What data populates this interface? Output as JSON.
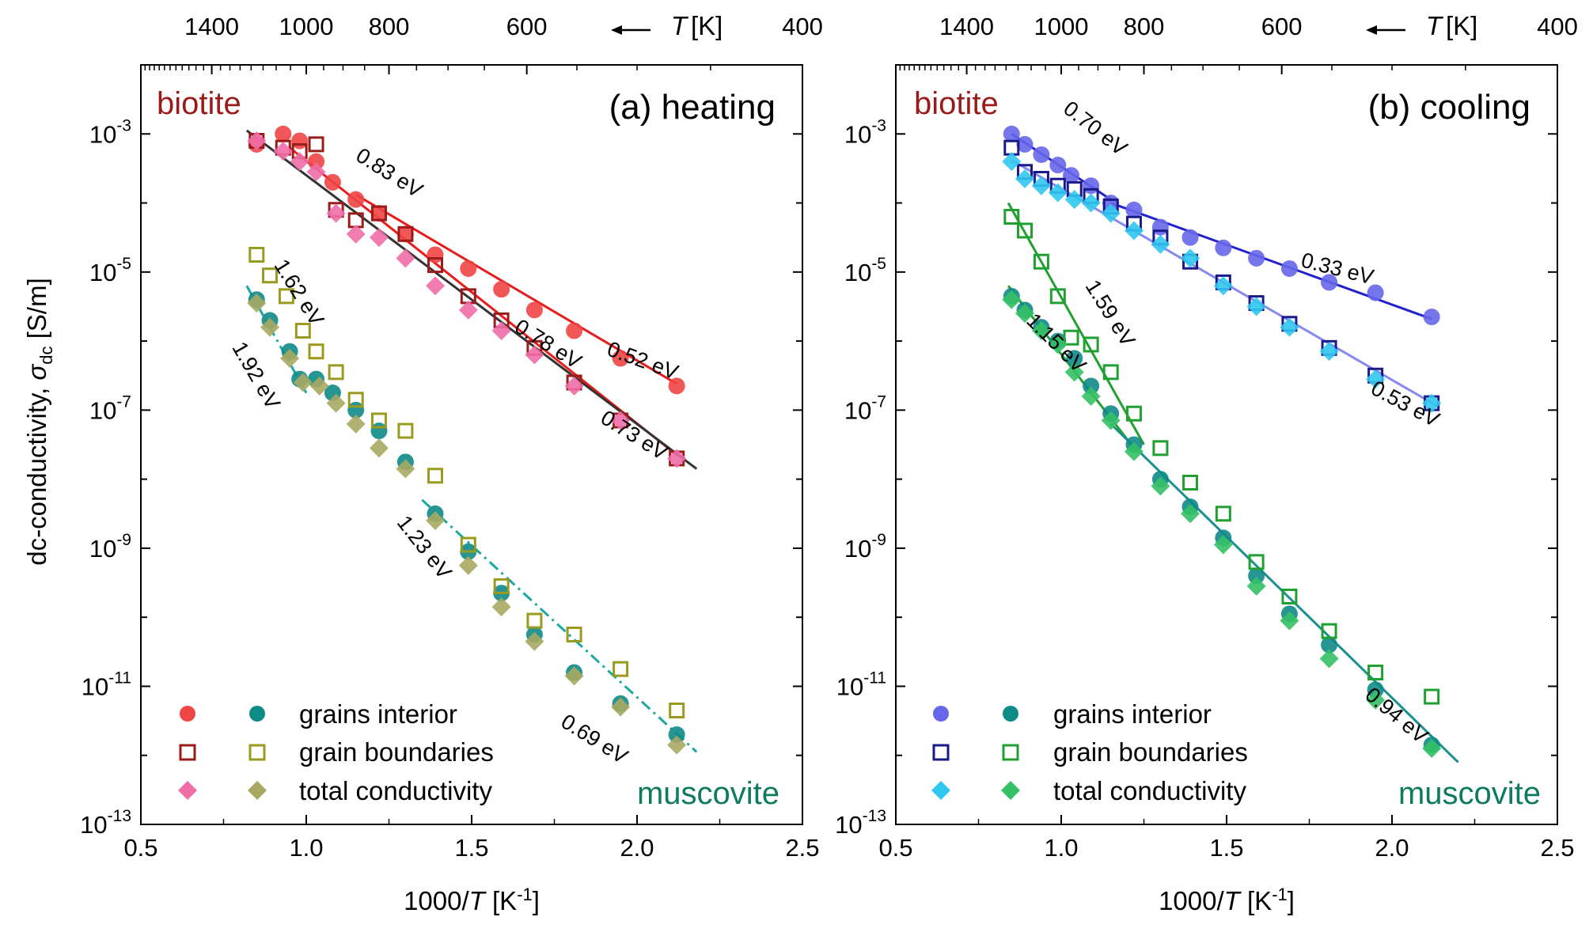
{
  "chart_data": [
    {
      "type": "scatter",
      "title": "(a) heating",
      "xlabel": "1000/T [K⁻¹]",
      "ylabel": "dc-conductivity, σdc [S/m]",
      "top_xlabel": "← T [K]",
      "xlim": [
        0.5,
        2.5
      ],
      "ylim_log10": [
        -13,
        -2
      ],
      "xticks": [
        "0.5",
        "1.0",
        "1.5",
        "2.0",
        "2.5"
      ],
      "yticks": [
        {
          "exp": -13,
          "label": "10",
          "sup": "-13"
        },
        {
          "exp": -11,
          "label": "10",
          "sup": "-11"
        },
        {
          "exp": -9,
          "label": "10",
          "sup": "-9"
        },
        {
          "exp": -7,
          "label": "10",
          "sup": "-7"
        },
        {
          "exp": -5,
          "label": "10",
          "sup": "-5"
        },
        {
          "exp": -3,
          "label": "10",
          "sup": "-3"
        }
      ],
      "top_ticks": [
        "1400",
        "1000",
        "800",
        "600",
        "400"
      ],
      "material_labels": {
        "biotite": "biotite",
        "muscovite": "muscovite"
      },
      "legend": {
        "grains": "grains interior",
        "boundaries": "grain boundaries",
        "total": "total conductivity"
      },
      "series": [
        {
          "name": "biotite grains interior",
          "marker": "circle",
          "color": "#f04545",
          "x": [
            0.85,
            0.93,
            0.98,
            1.03,
            1.08,
            1.15,
            1.22,
            1.3,
            1.39,
            1.49,
            1.59,
            1.69,
            1.81,
            1.95,
            2.12
          ],
          "y": [
            -3.15,
            -3.0,
            -3.1,
            -3.4,
            -3.7,
            -3.95,
            -4.15,
            -4.45,
            -4.75,
            -4.95,
            -5.25,
            -5.55,
            -5.85,
            -6.25,
            -6.65
          ]
        },
        {
          "name": "biotite grain boundaries",
          "marker": "square-open",
          "color": "#9b1b1b",
          "x": [
            0.85,
            0.93,
            0.98,
            1.03,
            1.09,
            1.15,
            1.22,
            1.3,
            1.39,
            1.49,
            1.59,
            1.69,
            1.81,
            1.95,
            2.12
          ],
          "y": [
            -3.1,
            -3.2,
            -3.25,
            -3.15,
            -4.1,
            -4.25,
            -4.15,
            -4.45,
            -4.9,
            -5.35,
            -5.7,
            -6.1,
            -6.6,
            -7.15,
            -7.7
          ]
        },
        {
          "name": "biotite total conductivity",
          "marker": "diamond",
          "color": "#f06ea8",
          "x": [
            0.85,
            0.93,
            0.98,
            1.03,
            1.09,
            1.15,
            1.22,
            1.3,
            1.39,
            1.49,
            1.59,
            1.69,
            1.81,
            1.95,
            2.12
          ],
          "y": [
            -3.1,
            -3.25,
            -3.4,
            -3.55,
            -4.15,
            -4.45,
            -4.5,
            -4.8,
            -5.2,
            -5.55,
            -5.85,
            -6.2,
            -6.65,
            -7.15,
            -7.7
          ]
        },
        {
          "name": "muscovite grains interior",
          "marker": "circle",
          "color": "#0e8a87",
          "x": [
            0.85,
            0.89,
            0.95,
            0.98,
            1.03,
            1.08,
            1.15,
            1.22,
            1.3,
            1.39,
            1.49,
            1.59,
            1.69,
            1.81,
            1.95,
            2.12
          ],
          "y": [
            -5.4,
            -5.7,
            -6.15,
            -6.55,
            -6.55,
            -6.75,
            -7.0,
            -7.3,
            -7.75,
            -8.5,
            -9.05,
            -9.65,
            -10.25,
            -10.8,
            -11.25,
            -11.7
          ]
        },
        {
          "name": "muscovite grain boundaries",
          "marker": "square-open",
          "color": "#9a9a1e",
          "x": [
            0.85,
            0.89,
            0.94,
            0.99,
            1.03,
            1.09,
            1.15,
            1.22,
            1.3,
            1.39,
            1.49,
            1.59,
            1.69,
            1.81,
            1.95,
            2.12
          ],
          "y": [
            -4.75,
            -5.05,
            -5.35,
            -5.85,
            -6.15,
            -6.45,
            -6.85,
            -7.15,
            -7.3,
            -7.95,
            -8.95,
            -9.55,
            -10.05,
            -10.25,
            -10.75,
            -11.35
          ]
        },
        {
          "name": "muscovite total conductivity",
          "marker": "diamond",
          "color": "#a8a863",
          "x": [
            0.85,
            0.89,
            0.95,
            0.99,
            1.04,
            1.09,
            1.15,
            1.22,
            1.3,
            1.39,
            1.49,
            1.59,
            1.69,
            1.81,
            1.95,
            2.12
          ],
          "y": [
            -5.45,
            -5.8,
            -6.25,
            -6.6,
            -6.65,
            -6.9,
            -7.2,
            -7.55,
            -7.85,
            -8.6,
            -9.25,
            -9.85,
            -10.35,
            -10.85,
            -11.3,
            -11.85
          ]
        }
      ],
      "fits": [
        {
          "label": "0.52 eV",
          "color": "#e81c1c",
          "style": "solid",
          "x": [
            1.15,
            2.12
          ],
          "y": [
            -3.88,
            -6.62
          ]
        },
        {
          "label": "0.78 eV",
          "color": "#e81c1c",
          "style": "solid",
          "x": [
            0.95,
            2.12
          ],
          "y": [
            -3.2,
            -7.65
          ]
        },
        {
          "label": "0.73 eV",
          "color": "#333333",
          "style": "solid",
          "x": [
            0.82,
            2.18
          ],
          "y": [
            -2.95,
            -7.85
          ]
        },
        {
          "label": "1.92 eV",
          "color": "#1aa8a0",
          "style": "dashdot",
          "x": [
            0.82,
            1.0
          ],
          "y": [
            -5.2,
            -6.75
          ]
        },
        {
          "label": "0.69 eV",
          "color": "#1aa8a0",
          "style": "dashdot",
          "x": [
            1.35,
            2.18
          ],
          "y": [
            -8.3,
            -11.95
          ]
        }
      ],
      "slope_labels": [
        {
          "text": "0.83 eV",
          "x": 1.24,
          "y": -3.65,
          "rot": 32
        },
        {
          "text": "0.52 eV",
          "x": 2.01,
          "y": -6.38,
          "rot": 20
        },
        {
          "text": "0.78 eV",
          "x": 1.72,
          "y": -6.13,
          "rot": 32
        },
        {
          "text": "0.73 eV",
          "x": 1.98,
          "y": -7.45,
          "rot": 32
        },
        {
          "text": "1.62 eV",
          "x": 0.96,
          "y": -5.35,
          "rot": 58
        },
        {
          "text": "1.92 eV",
          "x": 0.83,
          "y": -6.55,
          "rot": 60
        },
        {
          "text": "1.23 eV",
          "x": 1.34,
          "y": -9.05,
          "rot": 52
        },
        {
          "text": "0.69 eV",
          "x": 1.86,
          "y": -11.85,
          "rot": 32
        }
      ]
    },
    {
      "type": "scatter",
      "title": "(b) cooling",
      "xlabel": "1000/T [K⁻¹]",
      "ylabel": "",
      "top_xlabel": "← T [K]",
      "xlim": [
        0.5,
        2.5
      ],
      "ylim_log10": [
        -13,
        -2
      ],
      "xticks": [
        "0.5",
        "1.0",
        "1.5",
        "2.0",
        "2.5"
      ],
      "yticks": [
        {
          "exp": -13,
          "label": "10",
          "sup": "-13"
        },
        {
          "exp": -11,
          "label": "10",
          "sup": "-11"
        },
        {
          "exp": -9,
          "label": "10",
          "sup": "-9"
        },
        {
          "exp": -7,
          "label": "10",
          "sup": "-7"
        },
        {
          "exp": -5,
          "label": "10",
          "sup": "-5"
        },
        {
          "exp": -3,
          "label": "10",
          "sup": "-3"
        }
      ],
      "top_ticks": [
        "1400",
        "1000",
        "800",
        "600",
        "400"
      ],
      "material_labels": {
        "biotite": "biotite",
        "muscovite": "muscovite"
      },
      "legend": {
        "grains": "grains interior",
        "boundaries": "grain boundaries",
        "total": "total conductivity"
      },
      "series": [
        {
          "name": "biotite grains interior",
          "marker": "circle",
          "color": "#6666ea",
          "x": [
            0.85,
            0.89,
            0.94,
            0.99,
            1.03,
            1.09,
            1.15,
            1.22,
            1.3,
            1.39,
            1.49,
            1.59,
            1.69,
            1.81,
            1.95,
            2.12
          ],
          "y": [
            -3.0,
            -3.15,
            -3.3,
            -3.45,
            -3.6,
            -3.75,
            -4.0,
            -4.1,
            -4.35,
            -4.5,
            -4.65,
            -4.8,
            -4.95,
            -5.15,
            -5.3,
            -5.65
          ]
        },
        {
          "name": "biotite grain boundaries",
          "marker": "square-open",
          "color": "#1a1a8a",
          "x": [
            0.85,
            0.89,
            0.94,
            0.99,
            1.04,
            1.09,
            1.15,
            1.22,
            1.3,
            1.39,
            1.49,
            1.59,
            1.69,
            1.81,
            1.95,
            2.12
          ],
          "y": [
            -3.2,
            -3.55,
            -3.65,
            -3.75,
            -3.8,
            -3.9,
            -4.05,
            -4.3,
            -4.5,
            -4.85,
            -5.15,
            -5.45,
            -5.75,
            -6.1,
            -6.5,
            -6.9
          ]
        },
        {
          "name": "biotite total conductivity",
          "marker": "diamond",
          "color": "#30c8f0",
          "x": [
            0.85,
            0.89,
            0.94,
            0.99,
            1.04,
            1.09,
            1.15,
            1.22,
            1.3,
            1.39,
            1.49,
            1.59,
            1.69,
            1.81,
            1.95,
            2.12
          ],
          "y": [
            -3.4,
            -3.65,
            -3.75,
            -3.85,
            -3.95,
            -4.0,
            -4.15,
            -4.4,
            -4.6,
            -4.8,
            -5.2,
            -5.5,
            -5.8,
            -6.15,
            -6.55,
            -6.9
          ]
        },
        {
          "name": "muscovite grains interior",
          "marker": "circle",
          "color": "#0e8a87",
          "x": [
            0.85,
            0.89,
            0.94,
            0.99,
            1.04,
            1.09,
            1.15,
            1.22,
            1.3,
            1.39,
            1.49,
            1.59,
            1.69,
            1.81,
            1.95,
            2.12
          ],
          "y": [
            -5.35,
            -5.55,
            -5.8,
            -6.0,
            -6.25,
            -6.65,
            -7.05,
            -7.5,
            -8.0,
            -8.4,
            -8.85,
            -9.4,
            -9.95,
            -10.4,
            -11.05,
            -11.85
          ]
        },
        {
          "name": "muscovite grain boundaries",
          "marker": "square-open",
          "color": "#20a030",
          "x": [
            0.85,
            0.89,
            0.94,
            0.99,
            1.03,
            1.09,
            1.15,
            1.22,
            1.3,
            1.39,
            1.49,
            1.59,
            1.69,
            1.81,
            1.95,
            2.12
          ],
          "y": [
            -4.2,
            -4.4,
            -4.85,
            -5.35,
            -5.95,
            -6.05,
            -6.45,
            -7.05,
            -7.55,
            -8.05,
            -8.5,
            -9.2,
            -9.7,
            -10.2,
            -10.8,
            -11.15
          ]
        },
        {
          "name": "muscovite total conductivity",
          "marker": "diamond",
          "color": "#35c065",
          "x": [
            0.85,
            0.89,
            0.94,
            0.99,
            1.04,
            1.09,
            1.15,
            1.22,
            1.3,
            1.39,
            1.49,
            1.59,
            1.69,
            1.81,
            1.95,
            2.12
          ],
          "y": [
            -5.4,
            -5.6,
            -5.85,
            -6.05,
            -6.45,
            -6.8,
            -7.15,
            -7.6,
            -8.1,
            -8.5,
            -8.95,
            -9.55,
            -10.05,
            -10.6,
            -11.2,
            -11.9
          ]
        }
      ],
      "fits": [
        {
          "label": "0.70 eV",
          "color": "#2222cc",
          "style": "solid",
          "x": [
            0.85,
            1.15
          ],
          "y": [
            -3.0,
            -3.95
          ]
        },
        {
          "label": "0.33 eV",
          "color": "#2222cc",
          "style": "solid",
          "x": [
            1.15,
            2.12
          ],
          "y": [
            -4.0,
            -5.68
          ]
        },
        {
          "label": "0.53 eV",
          "color": "#8888f0",
          "style": "solid",
          "x": [
            0.85,
            2.14
          ],
          "y": [
            -3.38,
            -6.95
          ]
        },
        {
          "label": "1.59 eV",
          "color": "#20a030",
          "style": "solid",
          "x": [
            0.84,
            1.25
          ],
          "y": [
            -4.0,
            -7.5
          ]
        },
        {
          "label": "1.15 eV",
          "color": "#20a030",
          "style": "solid",
          "x": [
            0.84,
            1.22
          ],
          "y": [
            -5.2,
            -7.55
          ]
        },
        {
          "label": "0.94 eV",
          "color": "#1a9090",
          "style": "solid",
          "x": [
            1.15,
            2.2
          ],
          "y": [
            -7.2,
            -12.1
          ]
        }
      ],
      "slope_labels": [
        {
          "text": "0.70 eV",
          "x": 1.09,
          "y": -3.0,
          "rot": 38
        },
        {
          "text": "0.33 eV",
          "x": 1.83,
          "y": -5.05,
          "rot": 14
        },
        {
          "text": "0.53 eV",
          "x": 2.03,
          "y": -7.0,
          "rot": 28
        },
        {
          "text": "1.59 eV",
          "x": 1.13,
          "y": -5.65,
          "rot": 58
        },
        {
          "text": "1.15 eV",
          "x": 0.97,
          "y": -6.1,
          "rot": 45
        },
        {
          "text": "0.94 eV",
          "x": 2.0,
          "y": -11.5,
          "rot": 40
        }
      ]
    }
  ]
}
